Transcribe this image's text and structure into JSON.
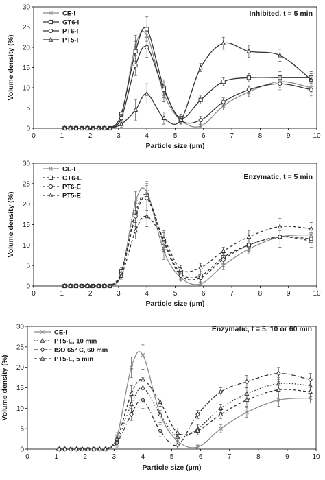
{
  "chart_data": [
    {
      "type": "line",
      "title": "Inhibited, t = 5 min",
      "xlabel": "Particle size (µm)",
      "ylabel": "Volume density (%)",
      "xlim": [
        0,
        10
      ],
      "ylim": [
        0,
        30
      ],
      "xticks": [
        0,
        1,
        2,
        3,
        4,
        5,
        6,
        7,
        8,
        9,
        10
      ],
      "yticks": [
        0,
        5,
        10,
        15,
        20,
        25,
        30
      ],
      "grid": false,
      "legend_position": "top-left",
      "series": [
        {
          "name": "CE-I",
          "marker": "x",
          "dash": "solid",
          "color": "#8c8c8c",
          "x": [
            1.1,
            1.3,
            1.5,
            1.7,
            1.9,
            2.1,
            2.3,
            2.5,
            2.7,
            3.1,
            3.6,
            4.0,
            4.6,
            5.2,
            5.9,
            6.7,
            7.6,
            8.7,
            9.8
          ],
          "y": [
            0,
            0,
            0,
            0,
            0,
            0,
            0,
            0,
            0,
            3.0,
            20.5,
            23.0,
            8.5,
            2.0,
            0.5,
            5.5,
            9.0,
            11.5,
            10.0
          ],
          "err": [
            null,
            null,
            null,
            null,
            null,
            null,
            null,
            null,
            null,
            1.0,
            2.5,
            2.5,
            2.0,
            0.8,
            0.5,
            1.0,
            1.2,
            1.5,
            1.2
          ]
        },
        {
          "name": "GT6-I",
          "marker": "square",
          "dash": "solid",
          "color": "#333333",
          "x": [
            1.1,
            1.3,
            1.5,
            1.7,
            1.9,
            2.1,
            2.3,
            2.5,
            2.7,
            3.1,
            3.6,
            4.0,
            4.6,
            5.2,
            5.9,
            6.7,
            7.6,
            8.7,
            9.8
          ],
          "y": [
            0,
            0,
            0,
            0,
            0,
            0,
            0,
            0,
            0,
            3.5,
            19.0,
            24.5,
            10.0,
            2.5,
            7.0,
            11.5,
            12.5,
            12.5,
            12.5
          ],
          "err": [
            null,
            null,
            null,
            null,
            null,
            null,
            null,
            null,
            null,
            1.0,
            2.5,
            3.0,
            2.0,
            1.0,
            1.0,
            1.0,
            1.0,
            1.5,
            1.5
          ]
        },
        {
          "name": "PT6-I",
          "marker": "circle",
          "dash": "solid",
          "color": "#333333",
          "x": [
            1.1,
            1.3,
            1.5,
            1.7,
            1.9,
            2.1,
            2.3,
            2.5,
            2.7,
            3.1,
            3.6,
            4.0,
            4.6,
            5.2,
            5.9,
            6.7,
            7.6,
            8.7,
            9.8
          ],
          "y": [
            0,
            0,
            0,
            0,
            0,
            0,
            0,
            0,
            0,
            2.5,
            15.5,
            20.0,
            9.5,
            2.0,
            2.0,
            6.5,
            9.5,
            11.0,
            9.5
          ],
          "err": [
            null,
            null,
            null,
            null,
            null,
            null,
            null,
            null,
            null,
            1.0,
            2.5,
            2.5,
            2.0,
            1.0,
            1.0,
            1.0,
            1.0,
            1.5,
            1.5
          ]
        },
        {
          "name": "PT5-I",
          "marker": "triangle",
          "dash": "solid",
          "color": "#333333",
          "x": [
            1.1,
            1.3,
            1.5,
            1.7,
            1.9,
            2.1,
            2.3,
            2.5,
            2.7,
            3.1,
            3.6,
            4.0,
            4.6,
            5.2,
            5.9,
            6.7,
            7.6,
            8.7,
            9.8
          ],
          "y": [
            0,
            0,
            0,
            0,
            0,
            0,
            0,
            0,
            0,
            1.0,
            4.5,
            8.5,
            2.5,
            2.0,
            15.0,
            21.0,
            19.0,
            18.0,
            12.0
          ],
          "err": [
            null,
            null,
            null,
            null,
            null,
            null,
            null,
            null,
            null,
            0.8,
            2.5,
            2.5,
            1.5,
            1.0,
            1.0,
            1.5,
            1.5,
            1.5,
            1.5
          ]
        }
      ]
    },
    {
      "type": "line",
      "title": "Enzymatic, t = 5 min",
      "xlabel": "Particle size (µm)",
      "ylabel": "Volume density (%)",
      "xlim": [
        0,
        10
      ],
      "ylim": [
        0,
        30
      ],
      "xticks": [
        0,
        1,
        2,
        3,
        4,
        5,
        6,
        7,
        8,
        9,
        10
      ],
      "yticks": [
        0,
        5,
        10,
        15,
        20,
        25,
        30
      ],
      "grid": false,
      "legend_position": "top-left",
      "series": [
        {
          "name": "CE-I",
          "marker": "x",
          "dash": "solid",
          "color": "#8c8c8c",
          "x": [
            1.1,
            1.3,
            1.5,
            1.7,
            1.9,
            2.1,
            2.3,
            2.5,
            2.7,
            3.1,
            3.6,
            4.0,
            4.6,
            5.2,
            5.9,
            6.7,
            7.6,
            8.7,
            9.8
          ],
          "y": [
            0,
            0,
            0,
            0,
            0,
            0,
            0,
            0,
            0,
            3.0,
            20.5,
            23.0,
            8.5,
            2.0,
            0.5,
            5.0,
            9.0,
            12.0,
            12.5
          ],
          "err": [
            null,
            null,
            null,
            null,
            null,
            null,
            null,
            null,
            null,
            1.0,
            2.5,
            2.5,
            2.0,
            0.8,
            0.5,
            1.0,
            1.2,
            1.5,
            1.2
          ]
        },
        {
          "name": "GT6-E",
          "marker": "square",
          "dash": "dashed",
          "color": "#333333",
          "x": [
            1.1,
            1.3,
            1.5,
            1.7,
            1.9,
            2.1,
            2.3,
            2.5,
            2.7,
            3.1,
            3.6,
            4.0,
            4.6,
            5.2,
            5.9,
            6.7,
            7.6,
            8.7,
            9.8
          ],
          "y": [
            0,
            0,
            0,
            0,
            0,
            0,
            0,
            0,
            0,
            3.5,
            18.0,
            22.0,
            11.0,
            3.0,
            2.5,
            7.0,
            10.0,
            12.0,
            11.0
          ],
          "err": [
            null,
            null,
            null,
            null,
            null,
            null,
            null,
            null,
            null,
            1.0,
            2.5,
            3.0,
            2.0,
            1.0,
            1.0,
            1.0,
            1.5,
            2.5,
            1.5
          ]
        },
        {
          "name": "PT6-E",
          "marker": "circle",
          "dash": "dashed",
          "color": "#333333",
          "x": [
            1.1,
            1.3,
            1.5,
            1.7,
            1.9,
            2.1,
            2.3,
            2.5,
            2.7,
            3.1,
            3.6,
            4.0,
            4.6,
            5.2,
            5.9,
            6.7,
            7.6,
            8.7,
            9.8
          ],
          "y": [
            0,
            0,
            0,
            0,
            0,
            0,
            0,
            0,
            0,
            3.0,
            17.0,
            21.5,
            10.5,
            2.5,
            2.0,
            6.5,
            10.0,
            12.0,
            11.5
          ],
          "err": [
            null,
            null,
            null,
            null,
            null,
            null,
            null,
            null,
            null,
            1.0,
            2.5,
            3.0,
            2.0,
            1.0,
            1.0,
            1.0,
            1.5,
            2.5,
            1.5
          ]
        },
        {
          "name": "PT5-E",
          "marker": "triangle",
          "dash": "dashed",
          "color": "#333333",
          "x": [
            1.1,
            1.3,
            1.5,
            1.7,
            1.9,
            2.1,
            2.3,
            2.5,
            2.7,
            3.1,
            3.6,
            4.0,
            4.6,
            5.2,
            5.9,
            6.7,
            7.6,
            8.7,
            9.8
          ],
          "y": [
            0,
            0,
            0,
            0,
            0,
            0,
            0,
            0,
            0,
            2.5,
            13.5,
            17.0,
            11.5,
            4.0,
            4.5,
            8.5,
            12.0,
            14.5,
            14.0
          ],
          "err": [
            null,
            null,
            null,
            null,
            null,
            null,
            null,
            null,
            null,
            1.0,
            2.0,
            2.5,
            2.0,
            1.0,
            1.0,
            1.0,
            1.5,
            2.0,
            1.5
          ]
        }
      ]
    },
    {
      "type": "line",
      "title": "Enzymatic, t = 5, 10 or 60 min",
      "xlabel": "Particle size (µm)",
      "ylabel": "Volume density (%)",
      "xlim": [
        0,
        10
      ],
      "ylim": [
        0,
        30
      ],
      "xticks": [
        0,
        1,
        2,
        3,
        4,
        5,
        6,
        7,
        8,
        9,
        10
      ],
      "yticks": [
        0,
        5,
        10,
        15,
        20,
        25,
        30
      ],
      "grid": false,
      "legend_position": "top-left",
      "series": [
        {
          "name": "CE-I",
          "marker": "x",
          "dash": "solid",
          "color": "#8c8c8c",
          "x": [
            1.1,
            1.3,
            1.5,
            1.7,
            1.9,
            2.1,
            2.3,
            2.5,
            2.7,
            3.1,
            3.6,
            4.0,
            4.6,
            5.2,
            5.9,
            6.7,
            7.6,
            8.7,
            9.8
          ],
          "y": [
            0,
            0,
            0,
            0,
            0,
            0,
            0,
            0,
            0,
            3.0,
            20.0,
            23.0,
            8.5,
            2.0,
            0.5,
            5.0,
            9.0,
            12.0,
            12.5
          ],
          "err": [
            null,
            null,
            null,
            null,
            null,
            null,
            null,
            null,
            null,
            1.0,
            2.5,
            2.5,
            2.0,
            0.8,
            0.5,
            1.0,
            1.2,
            1.5,
            1.2
          ]
        },
        {
          "name": "PT5-E, 10 min",
          "marker": "triangle",
          "dash": "dotted",
          "color": "#333333",
          "x": [
            1.1,
            1.3,
            1.5,
            1.7,
            1.9,
            2.1,
            2.3,
            2.5,
            2.7,
            3.1,
            3.6,
            4.0,
            4.6,
            5.2,
            5.9,
            6.7,
            7.6,
            8.7,
            9.8
          ],
          "y": [
            0,
            0,
            0,
            0,
            0,
            0,
            0,
            0,
            0,
            2.0,
            11.0,
            15.0,
            8.5,
            3.0,
            5.0,
            10.0,
            13.5,
            16.0,
            15.5
          ],
          "err": [
            null,
            null,
            null,
            null,
            null,
            null,
            null,
            null,
            null,
            1.0,
            2.0,
            2.5,
            2.0,
            1.0,
            1.0,
            1.0,
            1.5,
            1.5,
            1.5
          ]
        },
        {
          "name": "ISO 65° C, 60 min",
          "marker": "diamond",
          "dash": "dashdot",
          "color": "#333333",
          "x": [
            1.1,
            1.3,
            1.5,
            1.7,
            1.9,
            2.1,
            2.3,
            2.5,
            2.7,
            3.1,
            3.6,
            4.0,
            4.6,
            5.2,
            5.9,
            6.7,
            7.6,
            8.7,
            9.8
          ],
          "y": [
            0,
            0,
            0,
            0,
            0,
            0,
            0,
            0,
            0,
            1.5,
            8.5,
            12.0,
            4.5,
            1.0,
            8.5,
            14.0,
            16.5,
            18.5,
            17.0
          ],
          "err": [
            null,
            null,
            null,
            null,
            null,
            null,
            null,
            null,
            null,
            1.0,
            1.5,
            2.0,
            1.5,
            0.8,
            1.0,
            1.0,
            1.5,
            1.5,
            1.5
          ]
        },
        {
          "name": "PT5-E, 5 min",
          "marker": "triangle",
          "dash": "dashed",
          "color": "#333333",
          "x": [
            1.1,
            1.3,
            1.5,
            1.7,
            1.9,
            2.1,
            2.3,
            2.5,
            2.7,
            3.1,
            3.6,
            4.0,
            4.6,
            5.2,
            5.9,
            6.7,
            7.6,
            8.7,
            9.8
          ],
          "y": [
            0,
            0,
            0,
            0,
            0,
            0,
            0,
            0,
            0,
            2.5,
            13.5,
            17.0,
            11.5,
            4.0,
            4.5,
            8.5,
            12.0,
            14.5,
            14.0
          ],
          "err": [
            null,
            null,
            null,
            null,
            null,
            null,
            null,
            null,
            null,
            1.0,
            2.0,
            2.5,
            2.0,
            1.0,
            1.0,
            1.0,
            1.5,
            2.0,
            1.5
          ]
        }
      ]
    }
  ]
}
